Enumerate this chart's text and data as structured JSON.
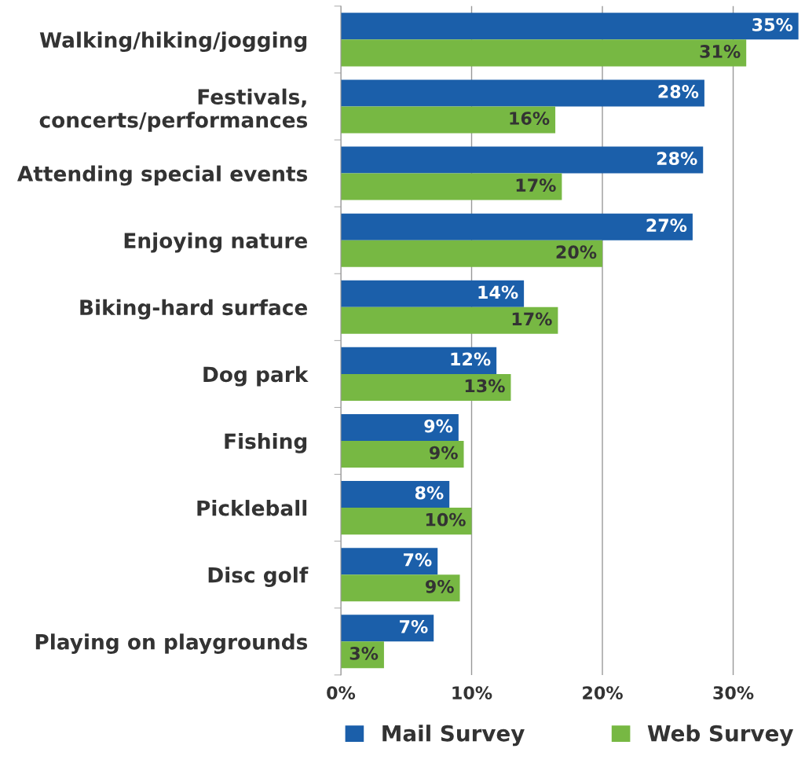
{
  "chart_data": {
    "type": "bar",
    "orientation": "horizontal",
    "categories": [
      "Walking/hiking/jogging",
      "Festivals,\nconcerts/performances",
      "Attending special events",
      "Enjoying nature",
      "Biking-hard surface",
      "Dog park",
      "Fishing",
      "Pickleball",
      "Disc golf",
      "Playing on playgrounds"
    ],
    "series": [
      {
        "name": "Mail Survey",
        "color": "#1b5faa",
        "values": [
          35.0,
          27.8,
          27.7,
          26.9,
          14.0,
          11.9,
          9.0,
          8.3,
          7.4,
          7.1
        ],
        "value_labels": [
          "35%",
          "28%",
          "28%",
          "27%",
          "14%",
          "12%",
          "9%",
          "8%",
          "7%",
          "7%"
        ]
      },
      {
        "name": "Web Survey",
        "color": "#77b843",
        "values": [
          31.0,
          16.4,
          16.9,
          20.0,
          16.6,
          13.0,
          9.4,
          10.0,
          9.1,
          3.3
        ],
        "value_labels": [
          "31%",
          "16%",
          "17%",
          "20%",
          "17%",
          "13%",
          "9%",
          "10%",
          "9%",
          "3%"
        ]
      }
    ],
    "xlim": [
      0,
      35
    ],
    "xticks": [
      {
        "value": 0,
        "label": "0%"
      },
      {
        "value": 10,
        "label": "10%"
      },
      {
        "value": 20,
        "label": "20%"
      },
      {
        "value": 30,
        "label": "30%"
      }
    ],
    "grid": "x",
    "legend": "bottom"
  }
}
